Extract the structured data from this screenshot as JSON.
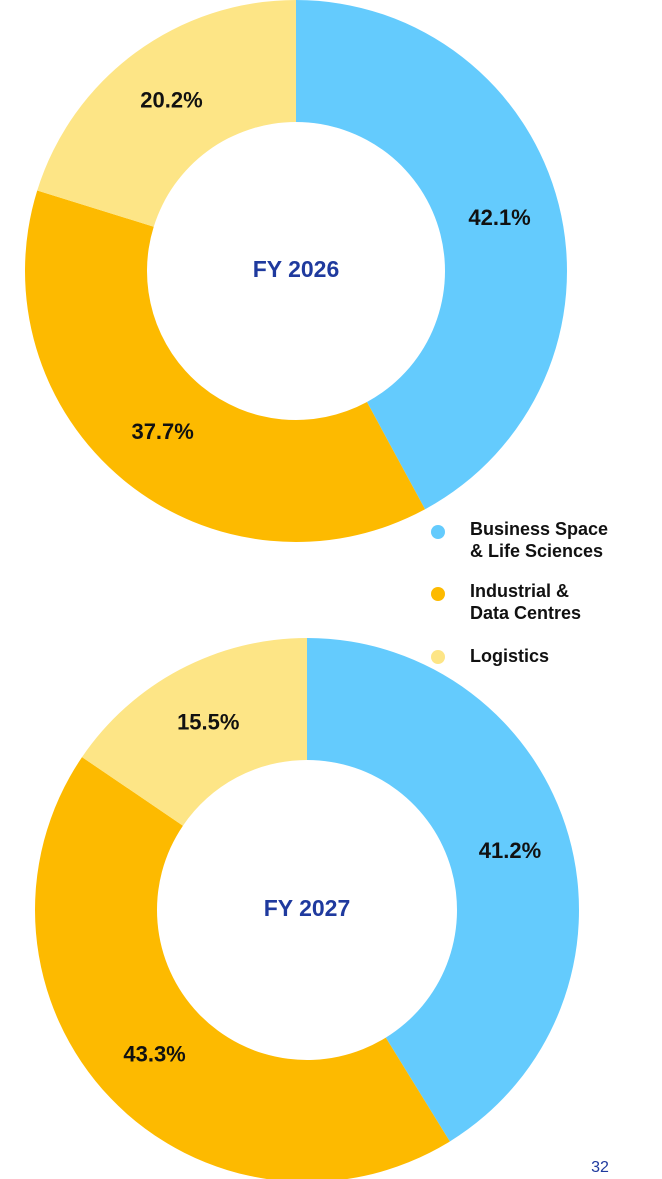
{
  "chart_data": [
    {
      "type": "donut",
      "center_label": "FY 2026",
      "values": [
        42.1,
        37.7,
        20.2
      ],
      "value_labels": [
        "42.1%",
        "37.7%",
        "20.2%"
      ]
    },
    {
      "type": "donut",
      "center_label": "FY 2027",
      "values": [
        41.2,
        43.3,
        15.5
      ],
      "value_labels": [
        "41.2%",
        "43.3%",
        "15.5%"
      ]
    }
  ],
  "legend": {
    "items": [
      {
        "lines": [
          "Business Space",
          "& Life Sciences"
        ],
        "color": "#64cbfd"
      },
      {
        "lines": [
          "Industrial &",
          "Data Centres"
        ],
        "color": "#fdba00"
      },
      {
        "lines": [
          "Logistics"
        ],
        "color": "#fde586"
      }
    ]
  },
  "page_number": "32"
}
